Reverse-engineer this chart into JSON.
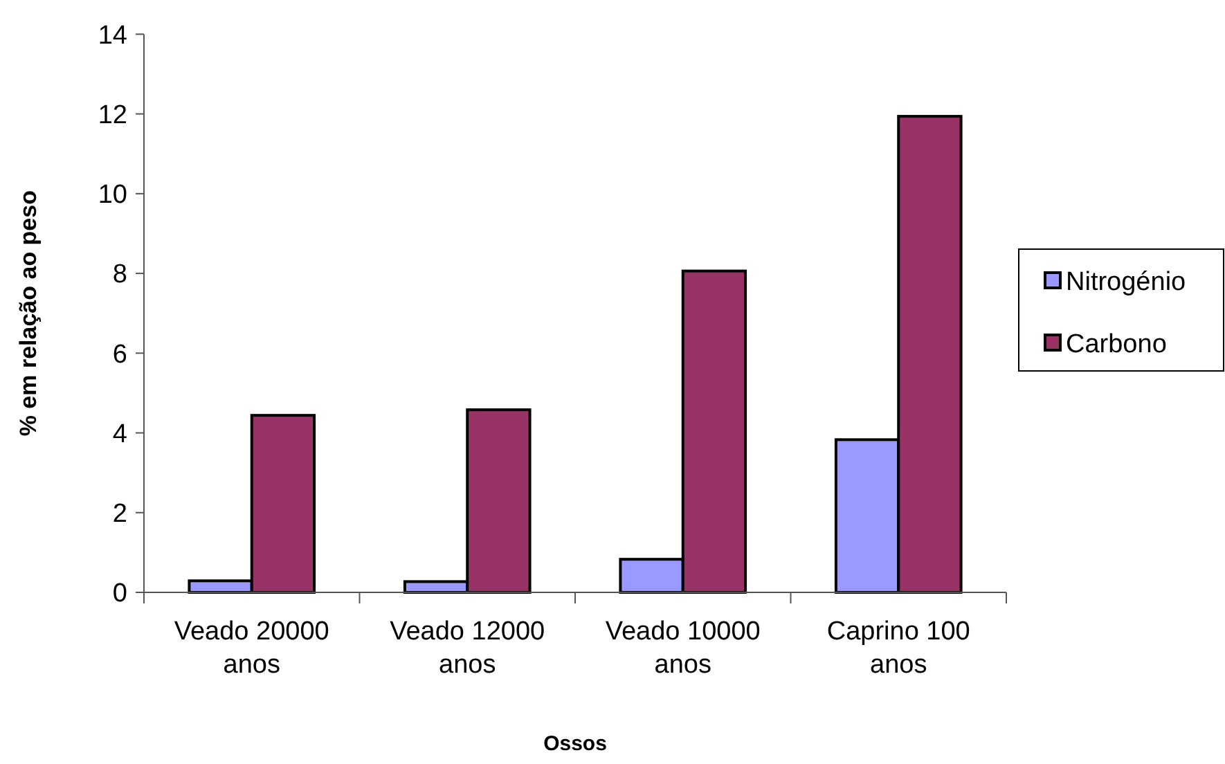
{
  "chart_data": {
    "type": "bar",
    "xlabel": "Ossos",
    "ylabel": "% em relação ao peso",
    "categories": [
      "Veado 20000 anos",
      "Veado 12000 anos",
      "Veado 10000 anos",
      "Caprino 100 anos"
    ],
    "series": [
      {
        "name": "Nitrogénio",
        "color": "#9999ff",
        "values": [
          0.29,
          0.27,
          0.83,
          3.83
        ]
      },
      {
        "name": "Carbono",
        "color": "#993366",
        "values": [
          4.44,
          4.58,
          8.06,
          11.94
        ]
      }
    ],
    "ylim": [
      0,
      14
    ],
    "yticks": [
      0,
      2,
      4,
      6,
      8,
      10,
      12,
      14
    ],
    "grid": false,
    "legend": "right"
  }
}
